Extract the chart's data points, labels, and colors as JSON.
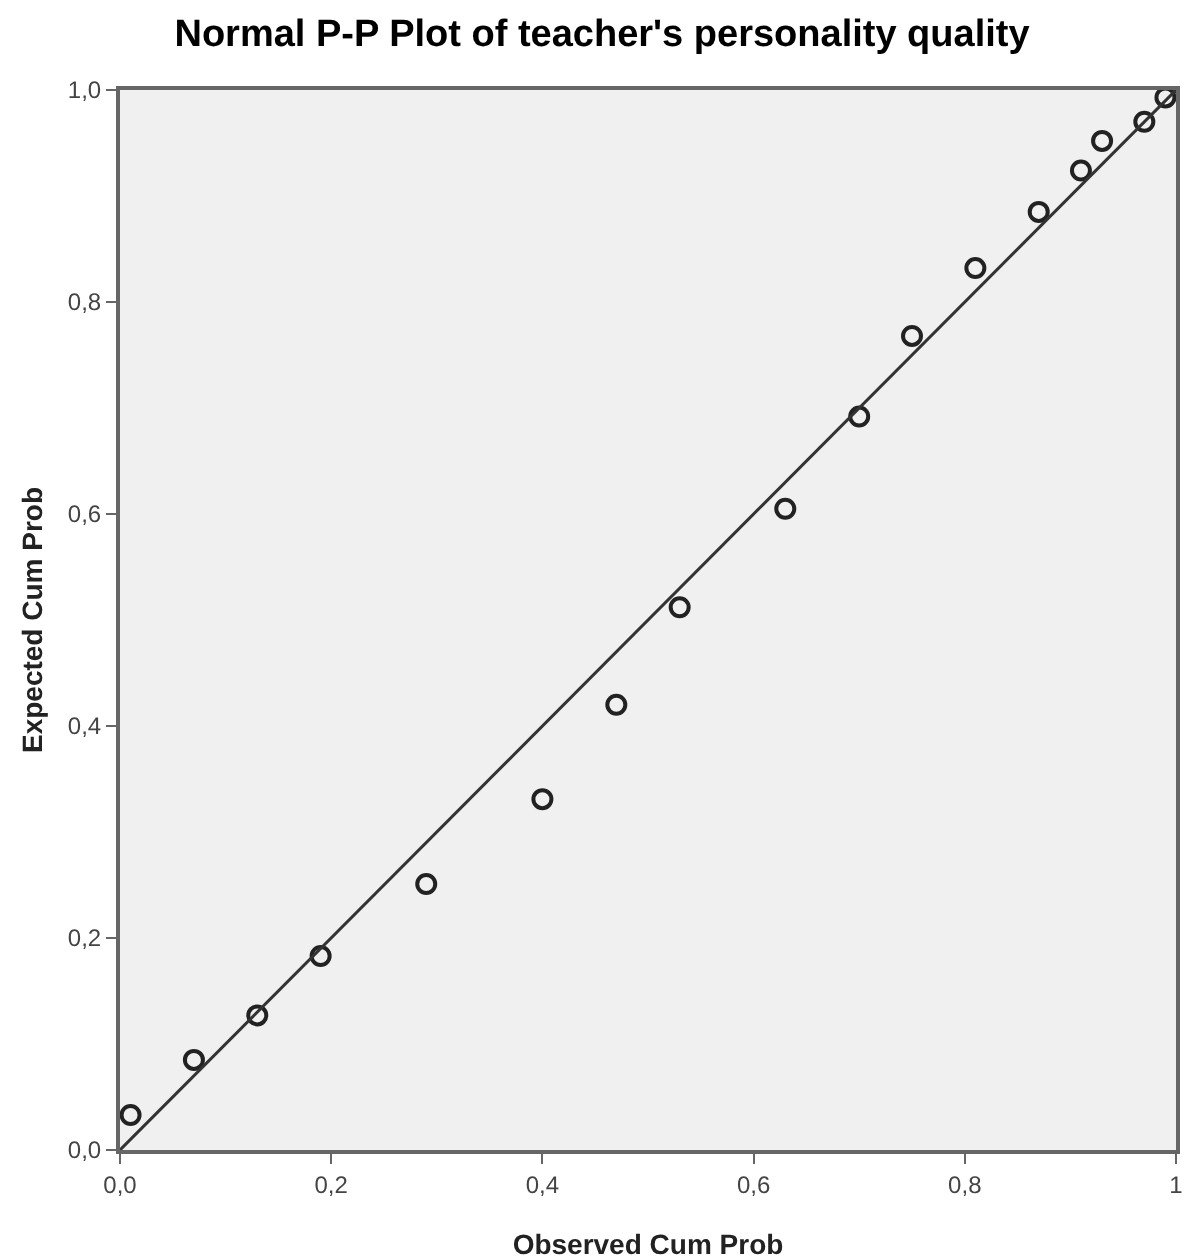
{
  "chart_data": {
    "type": "scatter",
    "title": "Normal P-P Plot of teacher's personality quality",
    "xlabel": "Observed Cum Prob",
    "ylabel": "Expected Cum Prob",
    "xlim": [
      0,
      1
    ],
    "ylim": [
      0,
      1
    ],
    "xticks": [
      {
        "value": 0,
        "label": "0,0"
      },
      {
        "value": 0.2,
        "label": "0,2"
      },
      {
        "value": 0.4,
        "label": "0,4"
      },
      {
        "value": 0.6,
        "label": "0,6"
      },
      {
        "value": 0.8,
        "label": "0,8"
      },
      {
        "value": 1,
        "label": "1"
      }
    ],
    "yticks": [
      {
        "value": 0,
        "label": "0,0"
      },
      {
        "value": 0.2,
        "label": "0,2"
      },
      {
        "value": 0.4,
        "label": "0,4"
      },
      {
        "value": 0.6,
        "label": "0,6"
      },
      {
        "value": 0.8,
        "label": "0,8"
      },
      {
        "value": 1,
        "label": "1,0"
      }
    ],
    "grid": false,
    "series": [
      {
        "marker": "circle",
        "color": "#222222",
        "x": [
          0.01,
          0.07,
          0.13,
          0.19,
          0.29,
          0.4,
          0.47,
          0.53,
          0.63,
          0.7,
          0.75,
          0.81,
          0.87,
          0.91,
          0.93,
          0.97,
          0.99
        ],
        "values": [
          0.033,
          0.085,
          0.127,
          0.183,
          0.251,
          0.331,
          0.42,
          0.512,
          0.605,
          0.692,
          0.768,
          0.832,
          0.885,
          0.924,
          0.952,
          0.97,
          0.993
        ]
      },
      {
        "type": "line",
        "color": "#333333",
        "x": [
          0,
          1
        ],
        "values": [
          0,
          1
        ],
        "line_style": "solid"
      }
    ]
  }
}
